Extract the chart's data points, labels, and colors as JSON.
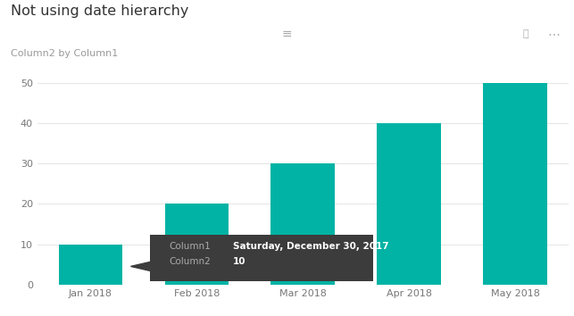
{
  "title": "Not using date hierarchy",
  "subtitle": "Column2 by Column1",
  "categories": [
    "Jan 2018",
    "Feb 2018",
    "Mar 2018",
    "Apr 2018",
    "May 2018"
  ],
  "values": [
    10,
    20,
    30,
    40,
    50
  ],
  "bar_color": "#00B3A4",
  "background_color": "#FFFFFF",
  "plot_bg_color": "#FFFFFF",
  "grid_color": "#E5E5E5",
  "axis_label_color": "#777777",
  "title_color": "#333333",
  "subtitle_color": "#999999",
  "ylim": [
    0,
    55
  ],
  "yticks": [
    0,
    10,
    20,
    30,
    40,
    50
  ],
  "toolbar_color": "#F2F2F2",
  "tooltip": {
    "col1_label": "Column1",
    "col1_value": "Saturday, December 30, 2017",
    "col2_label": "Column2",
    "col2_value": "10",
    "bg_color": "#3C3C3C",
    "label_color": "#AAAAAA",
    "value_color": "#FFFFFF"
  }
}
